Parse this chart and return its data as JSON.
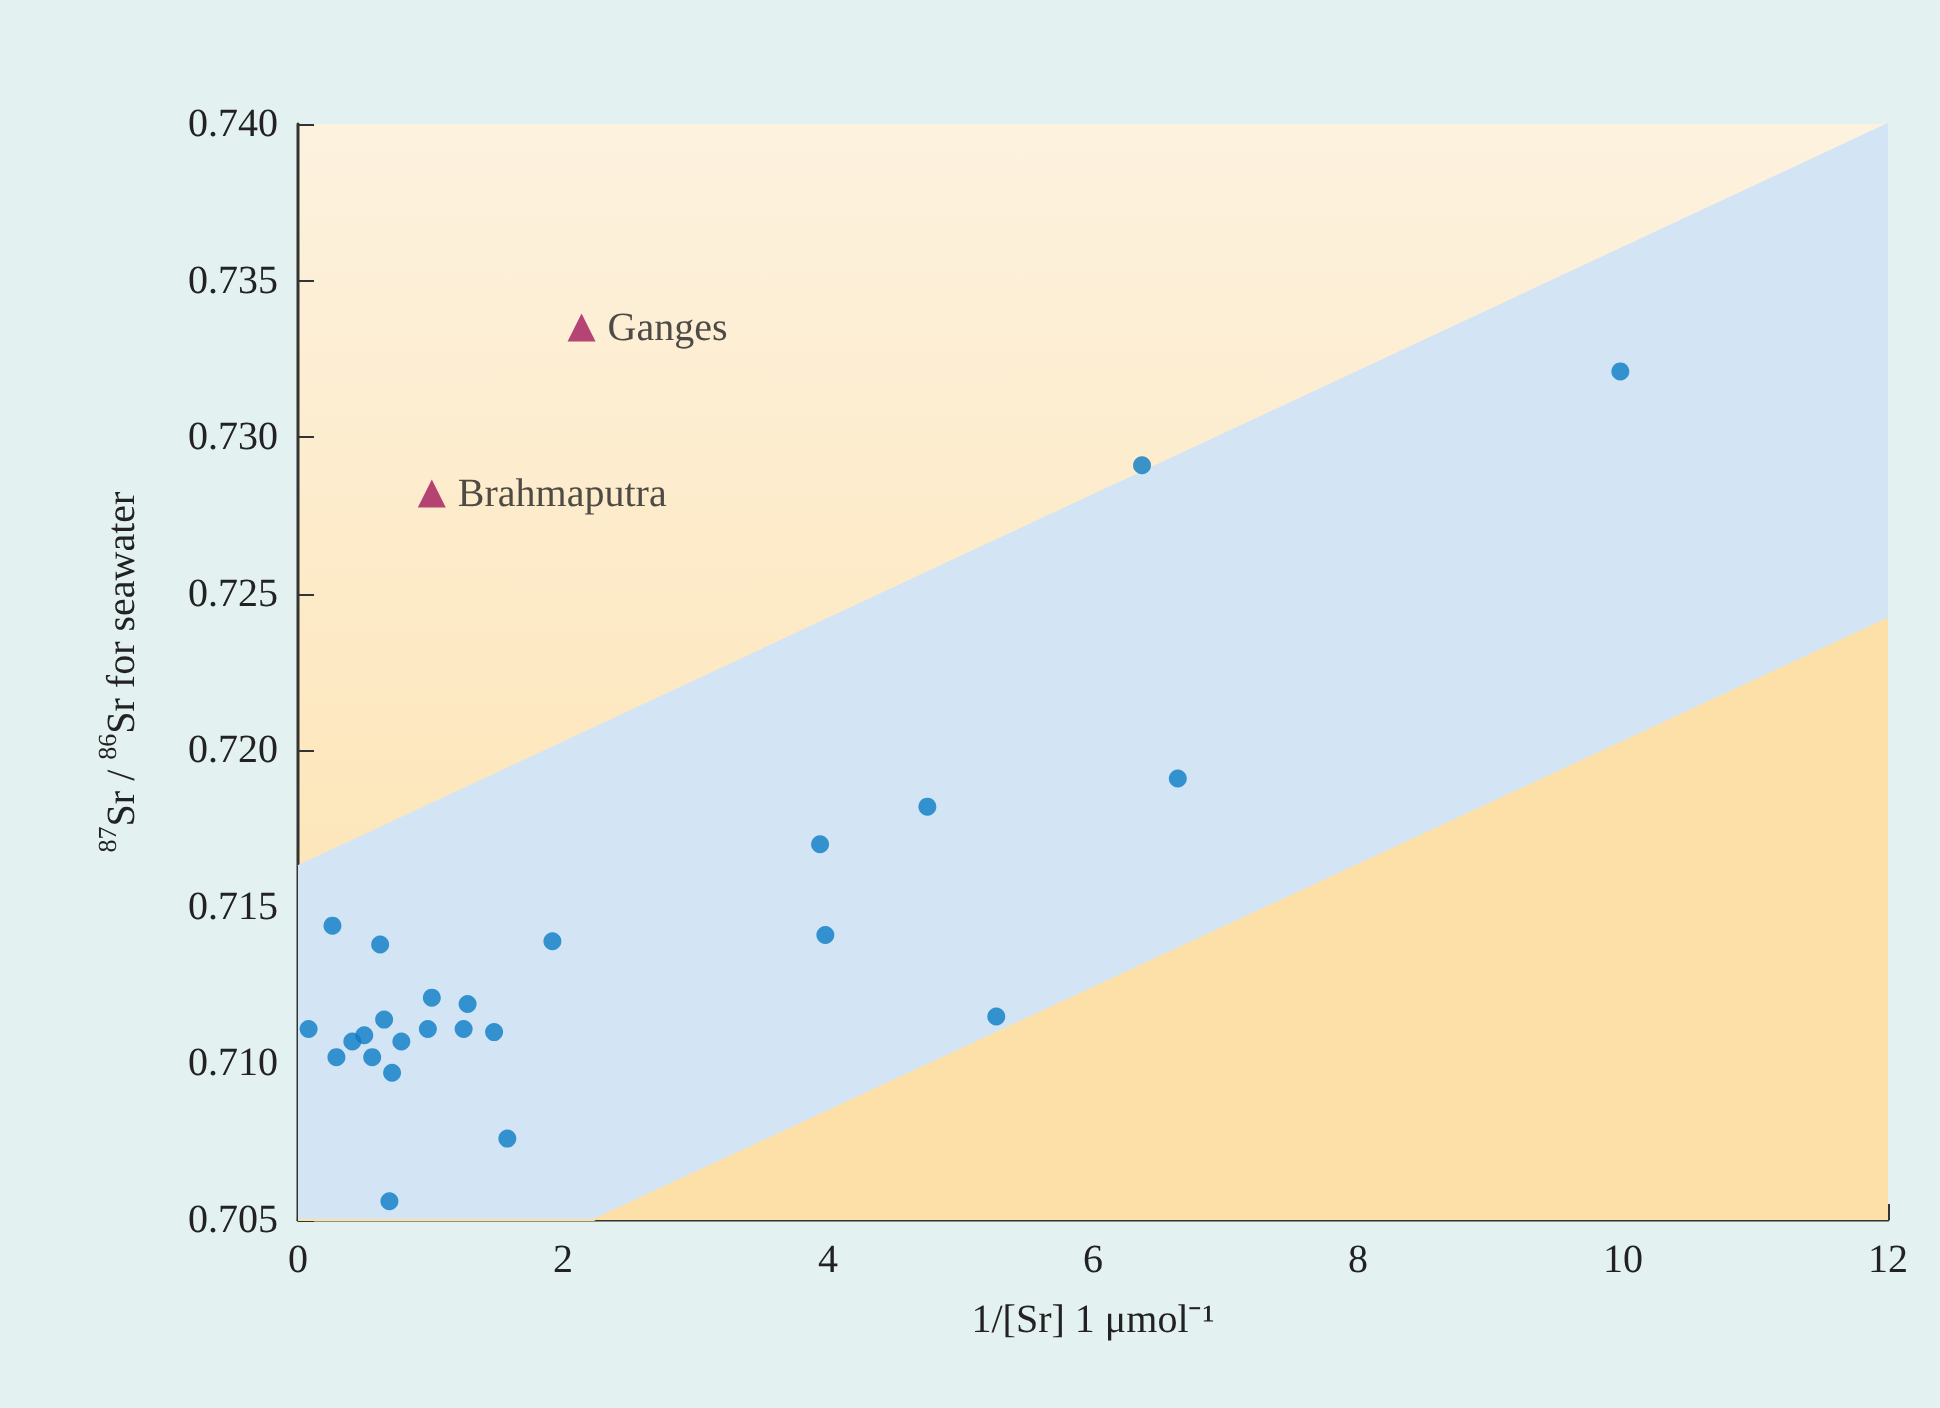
{
  "chart_data": {
    "type": "scatter",
    "xlabel": "1/[Sr] 1 μmol⁻¹",
    "ylabel": "$^{87}$Sr / $^{86}$Sr for seawater",
    "xlim": [
      0,
      12
    ],
    "xticks": [
      0,
      2,
      4,
      6,
      8,
      10,
      12
    ],
    "ylim": [
      0.705,
      0.74
    ],
    "yticks": [
      {
        "value": 0.705,
        "label": "0.705"
      },
      {
        "value": 0.71,
        "label": "0.710"
      },
      {
        "value": 0.715,
        "label": "0.715"
      },
      {
        "value": 0.72,
        "label": "0.720"
      },
      {
        "value": 0.725,
        "label": "0.725"
      },
      {
        "value": 0.73,
        "label": "0.730"
      },
      {
        "value": 0.735,
        "label": "0.735"
      },
      {
        "value": 0.74,
        "label": "0.740"
      }
    ],
    "grid": false,
    "legend": false,
    "marker": "circle",
    "series": [
      {
        "type": "area",
        "color": "#d3e5f4",
        "marker": "none",
        "x": [
          0,
          2.23,
          12
        ],
        "values": [
          0.7163,
          0.7207,
          0.74
        ]
      },
      {
        "type": "area",
        "color": "#fde0a8",
        "marker": "none",
        "x": [
          0,
          2.23,
          12
        ],
        "values": [
          0.705,
          0.705,
          0.7242
        ]
      },
      {
        "color": "#0a7cc4",
        "x": [
          0.08,
          0.26,
          0.29,
          0.41,
          0.5,
          0.56,
          0.62,
          0.65,
          0.71,
          0.78,
          0.69,
          0.98,
          1.01,
          1.25,
          1.28,
          1.48,
          1.58,
          1.92,
          3.94,
          3.98,
          4.75,
          5.27,
          6.37,
          6.64,
          9.98
        ],
        "values": [
          0.7111,
          0.7144,
          0.7102,
          0.7107,
          0.7109,
          0.7102,
          0.7138,
          0.7114,
          0.7097,
          0.7107,
          0.7056,
          0.7111,
          0.7121,
          0.7111,
          0.7119,
          0.711,
          0.7076,
          0.7139,
          0.717,
          0.7141,
          0.7182,
          0.7115,
          0.7291,
          0.7191,
          0.7321
        ]
      },
      {
        "name": "Ganges",
        "color": "#a3195b",
        "marker": "triangle",
        "x": [
          2.14
        ],
        "values": [
          0.7335
        ]
      },
      {
        "name": "Brahmaputra",
        "color": "#a3195b",
        "marker": "triangle",
        "x": [
          1.01
        ],
        "values": [
          0.7282
        ]
      }
    ]
  }
}
